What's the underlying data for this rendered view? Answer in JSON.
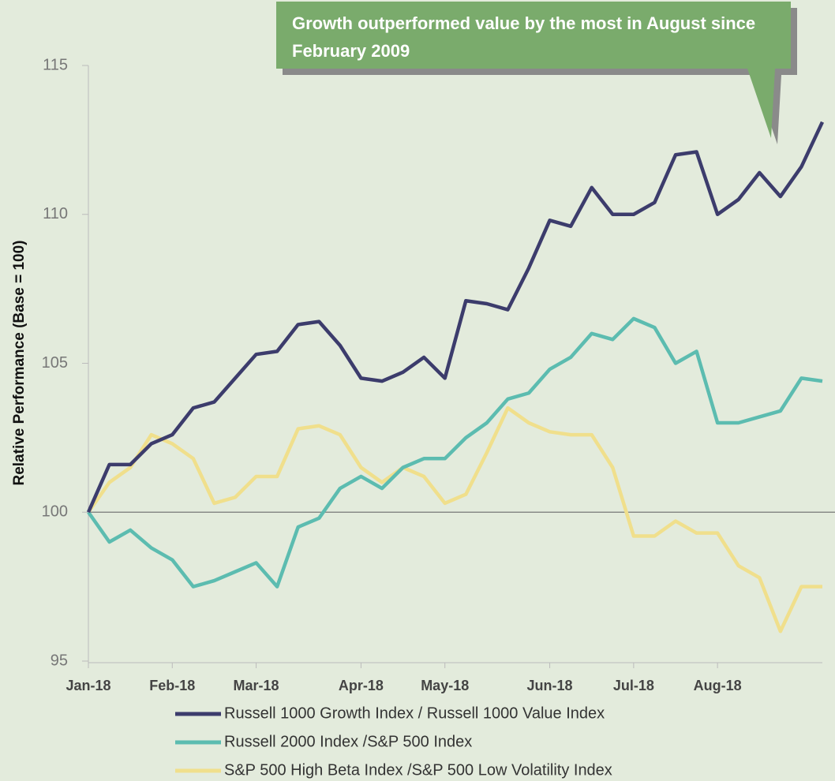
{
  "chart_data": {
    "type": "line",
    "annotation": "Growth outperformed value by the most in August since February 2009",
    "y_label": "Relative Performance (Base = 100)",
    "categories": [
      "Jan-18",
      null,
      null,
      null,
      "Feb-18",
      null,
      null,
      null,
      "Mar-18",
      null,
      null,
      null,
      null,
      "Apr-18",
      null,
      null,
      null,
      "May-18",
      null,
      null,
      null,
      null,
      "Jun-18",
      null,
      null,
      null,
      "Jul-18",
      null,
      null,
      null,
      "Aug-18",
      null,
      null,
      null,
      null,
      null
    ],
    "series": [
      {
        "name": "Russell 1000 Growth Index / Russell 1000 Value Index",
        "color": "#3c3c6c",
        "values": [
          100,
          101.6,
          101.6,
          102.3,
          102.6,
          103.5,
          103.7,
          104.5,
          105.3,
          105.4,
          106.3,
          106.4,
          105.6,
          104.5,
          104.4,
          104.7,
          105.2,
          104.5,
          107.1,
          107.0,
          106.8,
          108.2,
          109.8,
          109.6,
          110.9,
          110.0,
          110.0,
          110.4,
          112.0,
          112.1,
          110.0,
          110.5,
          111.4,
          110.6,
          111.6,
          113.1
        ]
      },
      {
        "name": "Russell 2000 Index /S&P 500 Index",
        "color": "#5cbcb0",
        "values": [
          100,
          99.0,
          99.4,
          98.8,
          98.4,
          97.5,
          97.7,
          98.0,
          98.3,
          97.5,
          99.5,
          99.8,
          100.8,
          101.2,
          100.8,
          101.5,
          101.8,
          101.8,
          102.5,
          103.0,
          103.8,
          104.0,
          104.8,
          105.2,
          106.0,
          105.8,
          106.5,
          106.2,
          105.0,
          105.4,
          103.0,
          103.0,
          103.2,
          103.4,
          104.5,
          104.4
        ]
      },
      {
        "name": "S&P 500 High Beta Index /S&P 500 Low Volatility Index",
        "color": "#f0df8c",
        "values": [
          100,
          101.0,
          101.5,
          102.6,
          102.3,
          101.8,
          100.3,
          100.5,
          101.2,
          101.2,
          102.8,
          102.9,
          102.6,
          101.5,
          101.0,
          101.5,
          101.2,
          100.3,
          100.6,
          102.0,
          103.5,
          103.0,
          102.7,
          102.6,
          102.6,
          101.5,
          99.2,
          99.2,
          99.7,
          99.3,
          99.3,
          98.2,
          97.8,
          96.0,
          97.5,
          97.5
        ]
      }
    ],
    "ylim": [
      95,
      115
    ],
    "yticks": [
      95,
      100,
      105,
      110,
      115
    ],
    "baseline": 100
  }
}
